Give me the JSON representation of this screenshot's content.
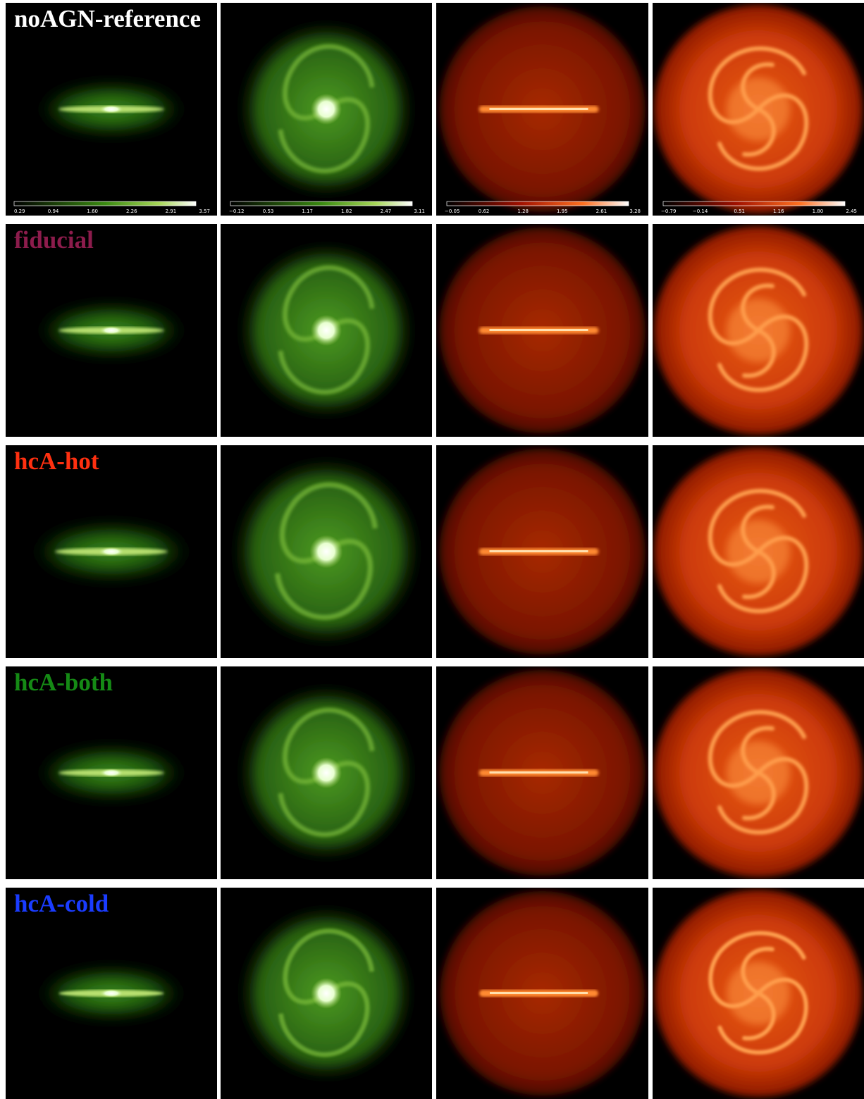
{
  "rows": [
    {
      "label": "noAGN-reference",
      "colorbars": [
        {
          "ticks": [
            "0.29",
            "0.94",
            "1.60",
            "2.26",
            "2.91",
            "3.57"
          ]
        },
        {
          "ticks": [
            "−0.12",
            "0.53",
            "1.17",
            "1.82",
            "2.47",
            "3.11"
          ]
        },
        {
          "ticks": [
            "−0.05",
            "0.62",
            "1.28",
            "1.95",
            "2.61",
            "3.28"
          ]
        },
        {
          "ticks": [
            "−0.79",
            "−0.14",
            "0.51",
            "1.16",
            "1.80",
            "2.45"
          ]
        }
      ]
    },
    {
      "label": "fiducial"
    },
    {
      "label": "hcA-hot"
    },
    {
      "label": "hcA-both"
    },
    {
      "label": "hcA-cold"
    }
  ]
}
